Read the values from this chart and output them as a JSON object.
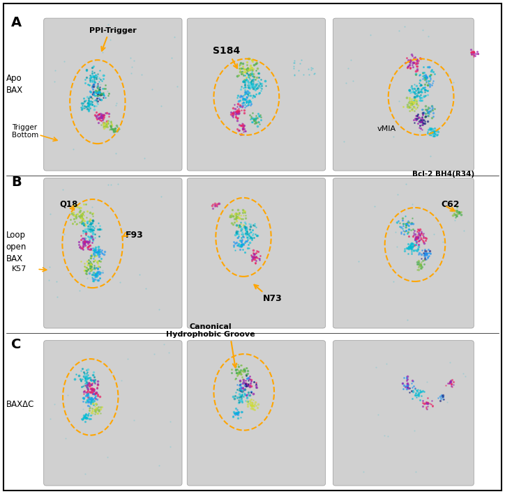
{
  "title": "",
  "background_color": "#ffffff",
  "border_color": "#000000",
  "row_labels_A": [
    "Apo",
    "BAX"
  ],
  "row_labels_B": [
    "Loop",
    "open",
    "BAX"
  ],
  "row_labels_C": [
    "BAXΔC"
  ],
  "panel_labels": [
    "A",
    "B",
    "C"
  ],
  "figsize": [
    7.24,
    7.09
  ],
  "dpi": 100,
  "teal": "#00bcd4",
  "purple": "#9c27b0",
  "green": "#4caf50",
  "yellow_green": "#cddc39",
  "blue": "#2196f3",
  "navy": "#1a237e",
  "magenta": "#e91e63",
  "lime": "#8bc34a",
  "orange": "#FFA500"
}
